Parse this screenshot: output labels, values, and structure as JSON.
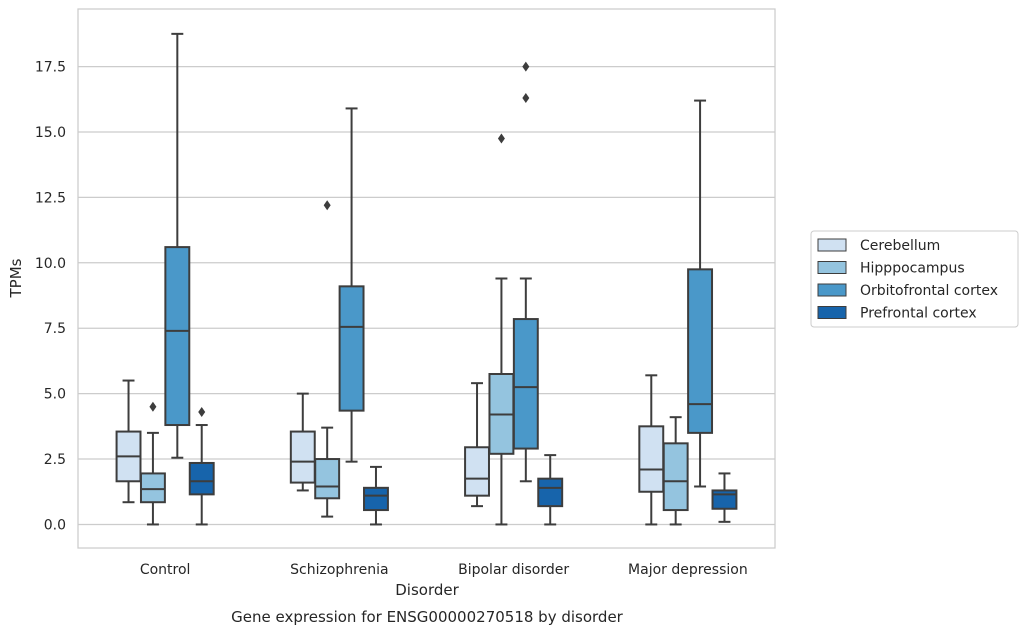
{
  "chart_data": {
    "type": "box",
    "xlabel": "Disorder",
    "ylabel": "TPMs",
    "caption": "Gene expression for ENSG00000270518 by disorder",
    "ylim": [
      -0.9,
      19.7
    ],
    "yticks": [
      0.0,
      2.5,
      5.0,
      7.5,
      10.0,
      12.5,
      15.0,
      17.5
    ],
    "ytick_labels": [
      "0.0",
      "2.5",
      "5.0",
      "7.5",
      "10.0",
      "12.5",
      "15.0",
      "17.5"
    ],
    "grid": true,
    "legend_position": "right",
    "categories": [
      "Control",
      "Schizophrenia",
      "Bipolar disorder",
      "Major depression"
    ],
    "series": [
      {
        "name": "Cerebellum",
        "color": "#d0e1f2",
        "boxes": [
          {
            "whisker_low": 0.85,
            "q1": 1.65,
            "median": 2.6,
            "q3": 3.55,
            "whisker_high": 5.5,
            "outliers": []
          },
          {
            "whisker_low": 1.3,
            "q1": 1.6,
            "median": 2.4,
            "q3": 3.55,
            "whisker_high": 5.0,
            "outliers": []
          },
          {
            "whisker_low": 0.7,
            "q1": 1.1,
            "median": 1.75,
            "q3": 2.95,
            "whisker_high": 5.4,
            "outliers": []
          },
          {
            "whisker_low": 0.0,
            "q1": 1.25,
            "median": 2.1,
            "q3": 3.75,
            "whisker_high": 5.7,
            "outliers": []
          }
        ]
      },
      {
        "name": "Hipppocampus",
        "color": "#94c4df",
        "boxes": [
          {
            "whisker_low": 0.0,
            "q1": 0.85,
            "median": 1.35,
            "q3": 1.95,
            "whisker_high": 3.5,
            "outliers": [
              4.5
            ]
          },
          {
            "whisker_low": 0.3,
            "q1": 1.0,
            "median": 1.45,
            "q3": 2.5,
            "whisker_high": 3.7,
            "outliers": [
              12.2
            ]
          },
          {
            "whisker_low": 0.0,
            "q1": 2.7,
            "median": 4.2,
            "q3": 5.75,
            "whisker_high": 9.4,
            "outliers": [
              14.75
            ]
          },
          {
            "whisker_low": 0.0,
            "q1": 0.55,
            "median": 1.65,
            "q3": 3.1,
            "whisker_high": 4.1,
            "outliers": []
          }
        ]
      },
      {
        "name": "Orbitofrontal cortex",
        "color": "#4a98c9",
        "boxes": [
          {
            "whisker_low": 2.55,
            "q1": 3.8,
            "median": 7.4,
            "q3": 10.6,
            "whisker_high": 18.75,
            "outliers": []
          },
          {
            "whisker_low": 2.4,
            "q1": 4.35,
            "median": 7.55,
            "q3": 9.1,
            "whisker_high": 15.9,
            "outliers": []
          },
          {
            "whisker_low": 1.65,
            "q1": 2.9,
            "median": 5.25,
            "q3": 7.85,
            "whisker_high": 9.4,
            "outliers": [
              16.3,
              17.5
            ]
          },
          {
            "whisker_low": 1.45,
            "q1": 3.5,
            "median": 4.6,
            "q3": 9.75,
            "whisker_high": 16.2,
            "outliers": []
          }
        ]
      },
      {
        "name": "Prefrontal cortex",
        "color": "#1764ab",
        "boxes": [
          {
            "whisker_low": 0.0,
            "q1": 1.15,
            "median": 1.65,
            "q3": 2.35,
            "whisker_high": 3.8,
            "outliers": [
              4.3
            ]
          },
          {
            "whisker_low": 0.0,
            "q1": 0.55,
            "median": 1.1,
            "q3": 1.4,
            "whisker_high": 2.2,
            "outliers": []
          },
          {
            "whisker_low": 0.0,
            "q1": 0.7,
            "median": 1.4,
            "q3": 1.75,
            "whisker_high": 2.65,
            "outliers": []
          },
          {
            "whisker_low": 0.1,
            "q1": 0.6,
            "median": 1.15,
            "q3": 1.3,
            "whisker_high": 1.95,
            "outliers": []
          }
        ]
      }
    ]
  }
}
